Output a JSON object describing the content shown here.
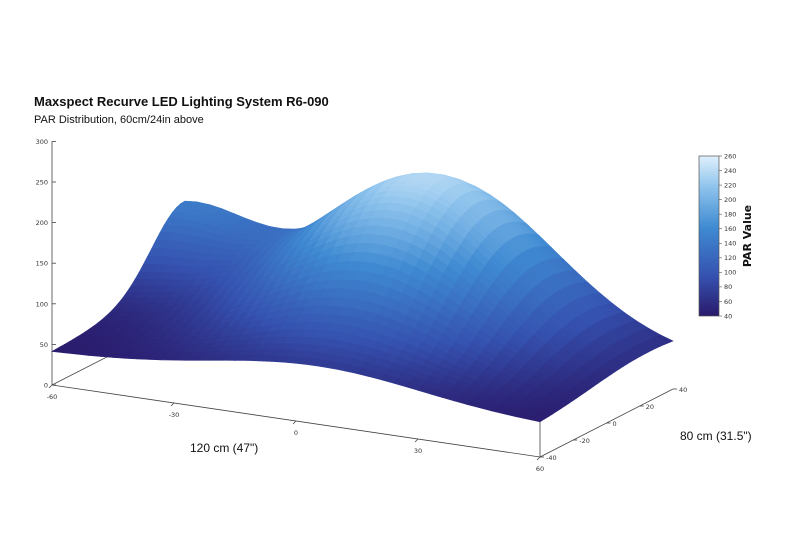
{
  "chart_data": {
    "type": "surface",
    "title": "Maxspect Recurve LED Lighting System R6-090",
    "subtitle": "PAR Distribution, 60cm/24in above",
    "xlabel": "120 cm (47\")",
    "ylabel": "80 cm (31.5\")",
    "zlabel": "PAR Value",
    "x_ticks": [
      "-60",
      "-30",
      "0",
      "30",
      "60"
    ],
    "y_ticks": [
      "-40",
      "-20",
      "0",
      "20",
      "40"
    ],
    "z_ticks": [
      "0",
      "50",
      "100",
      "150",
      "200",
      "250",
      "300"
    ],
    "colorbar_ticks": [
      "40",
      "60",
      "80",
      "100",
      "120",
      "140",
      "160",
      "180",
      "200",
      "220",
      "240",
      "260"
    ],
    "colorbar_range": [
      40,
      260
    ],
    "zlim": [
      0,
      300
    ],
    "x_range": [
      -60,
      60
    ],
    "y_range": [
      -40,
      40
    ],
    "peak": {
      "x": 5,
      "y": 25,
      "par": 237
    },
    "edge_samples": [
      {
        "x": -60,
        "y": -40,
        "par": 48
      },
      {
        "x": 60,
        "y": -40,
        "par": 42
      },
      {
        "x": -60,
        "y": 40,
        "par": 125
      },
      {
        "x": 60,
        "y": 40,
        "par": 45
      }
    ],
    "colors": {
      "low": "#2e1f73",
      "mid": "#3f8ad2",
      "high": "#d9ecfb"
    },
    "grid": false
  }
}
